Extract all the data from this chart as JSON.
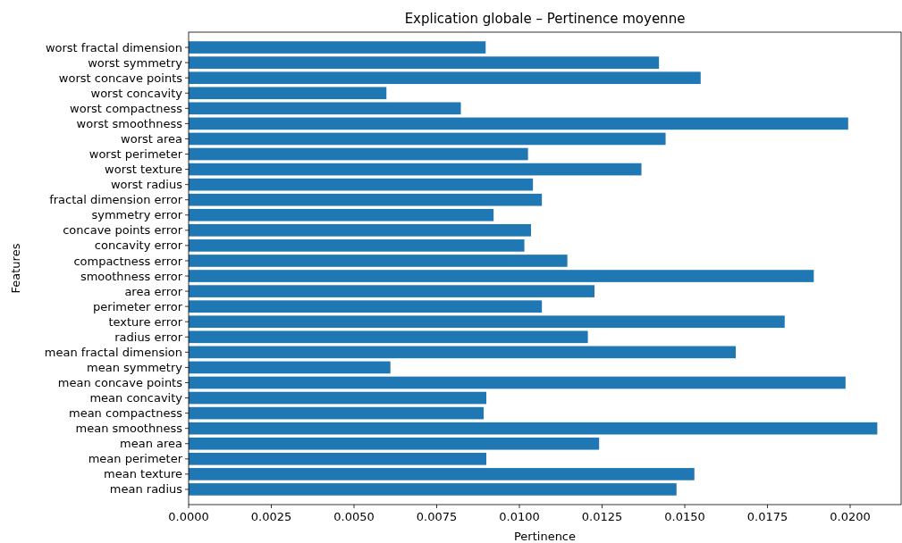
{
  "chart_data": {
    "type": "bar",
    "orientation": "horizontal",
    "title": "Explication globale – Pertinence moyenne",
    "xlabel": "Pertinence",
    "ylabel": "Features",
    "color": "#1f77b4",
    "categories": [
      "worst fractal dimension",
      "worst symmetry",
      "worst concave points",
      "worst concavity",
      "worst compactness",
      "worst smoothness",
      "worst area",
      "worst perimeter",
      "worst texture",
      "worst radius",
      "fractal dimension error",
      "symmetry error",
      "concave points error",
      "concavity error",
      "compactness error",
      "smoothness error",
      "area error",
      "perimeter error",
      "texture error",
      "radius error",
      "mean fractal dimension",
      "mean symmetry",
      "mean concave points",
      "mean concavity",
      "mean compactness",
      "mean smoothness",
      "mean area",
      "mean perimeter",
      "mean texture",
      "mean radius"
    ],
    "values": [
      0.00898,
      0.01422,
      0.01548,
      0.00598,
      0.00823,
      0.01994,
      0.01442,
      0.01026,
      0.01369,
      0.01041,
      0.01068,
      0.00922,
      0.01035,
      0.01015,
      0.01145,
      0.0189,
      0.01227,
      0.01068,
      0.01802,
      0.01207,
      0.01654,
      0.0061,
      0.01986,
      0.009,
      0.00892,
      0.02082,
      0.01241,
      0.009,
      0.01529,
      0.01475
    ],
    "xlim": [
      0,
      0.02154
    ],
    "xticks": [
      {
        "value": 0,
        "label": "0.0000"
      },
      0.0025,
      {
        "value": 0.005,
        "label": "0.0050"
      },
      0.0075,
      {
        "value": 0.01,
        "label": "0.0100"
      },
      0.0125,
      {
        "value": 0.015,
        "label": "0.0150"
      },
      0.0175,
      {
        "value": 0.02,
        "label": "0.0200"
      }
    ],
    "grid": false
  }
}
